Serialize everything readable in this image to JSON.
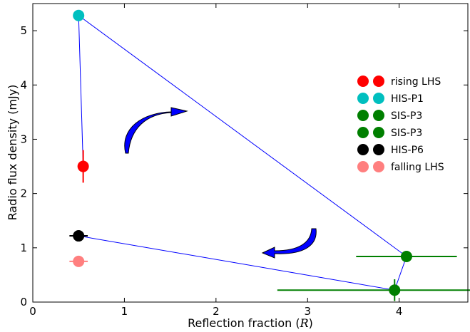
{
  "chart_data": {
    "type": "scatter",
    "xlabel_text": "Reflection fraction (",
    "xlabel_var": "R",
    "xlabel_close": ")",
    "ylabel": "Radio flux density (mJy)",
    "xlim": [
      0,
      4.75
    ],
    "ylim": [
      0,
      5.5
    ],
    "xticks": [
      0,
      1,
      2,
      3,
      4
    ],
    "yticks": [
      0,
      1,
      2,
      3,
      4,
      5
    ],
    "grid": false,
    "legend_position": "right",
    "series": [
      {
        "name": "rising LHS",
        "color": "#ff0000",
        "x": 0.55,
        "y": 2.5,
        "xerr": 0.0,
        "yerr": 0.3
      },
      {
        "name": "HIS-P1",
        "color": "#00bfbf",
        "x": 0.5,
        "y": 5.28,
        "xerr": 0.0,
        "yerr": 0.0
      },
      {
        "name": "SIS-P3",
        "color": "#007f00",
        "x": 4.08,
        "y": 0.84,
        "xerr": 0.55,
        "yerr": 0.0
      },
      {
        "name": "SIS-P3",
        "color": "#007f00",
        "x": 3.95,
        "y": 0.22,
        "xerr": 1.28,
        "yerr": 0.2
      },
      {
        "name": "HIS-P6",
        "color": "#000000",
        "x": 0.5,
        "y": 1.22,
        "xerr": 0.1,
        "yerr": 0.0
      },
      {
        "name": "falling LHS",
        "color": "#ff7f7f",
        "x": 0.5,
        "y": 0.75,
        "xerr": 0.1,
        "yerr": 0.0
      }
    ],
    "path_order": [
      0,
      1,
      2,
      3,
      4
    ],
    "path_color": "#0000ff",
    "arrow_color": "#0000ff"
  }
}
